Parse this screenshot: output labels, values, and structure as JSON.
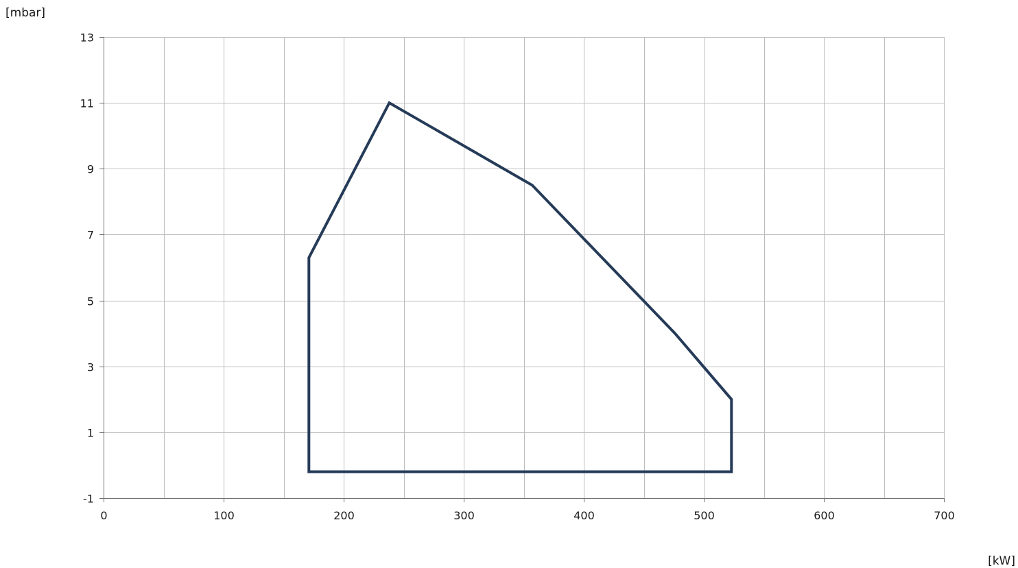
{
  "chart_data": {
    "type": "line",
    "title": "",
    "xlabel": "[kW]",
    "ylabel": "[mbar]",
    "xlim": [
      0,
      700
    ],
    "ylim": [
      -1,
      13
    ],
    "x_ticks": [
      0,
      100,
      200,
      300,
      400,
      500,
      600,
      700
    ],
    "x_tick_labels": [
      "0",
      "100",
      "200",
      "300",
      "400",
      "500",
      "600",
      "700"
    ],
    "x_minor_grid_step": 50,
    "y_ticks": [
      -1,
      1,
      3,
      5,
      7,
      9,
      11,
      13
    ],
    "y_tick_labels": [
      "-1",
      "1",
      "3",
      "5",
      "7",
      "9",
      "11",
      "13"
    ],
    "grid": true,
    "legend": "none",
    "series": [
      {
        "color": "#253b58",
        "closed": true,
        "points": [
          {
            "x": 171,
            "y": 6.3
          },
          {
            "x": 238,
            "y": 11
          },
          {
            "x": 357,
            "y": 8.5
          },
          {
            "x": 476,
            "y": 4
          },
          {
            "x": 523,
            "y": 2
          },
          {
            "x": 523,
            "y": -0.2
          },
          {
            "x": 171,
            "y": -0.2
          }
        ]
      }
    ]
  }
}
